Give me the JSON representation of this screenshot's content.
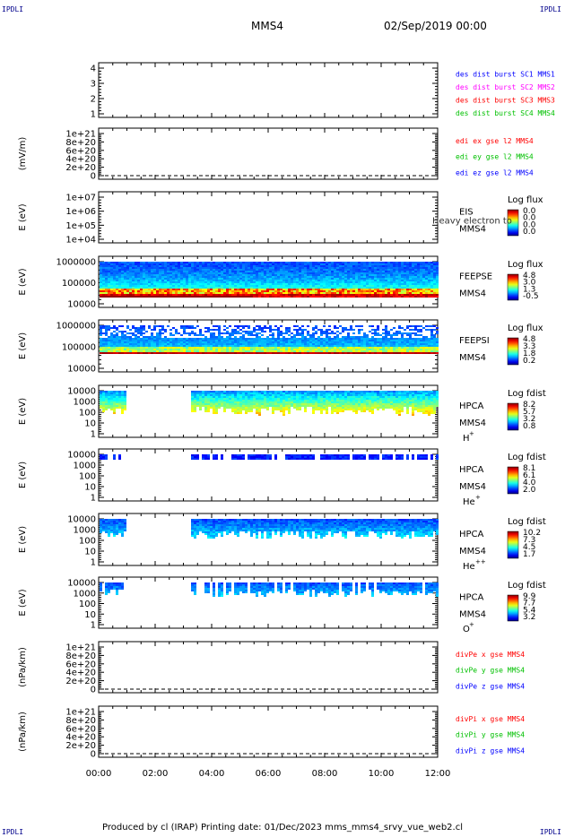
{
  "corners": {
    "tl": "IPDLI",
    "tr": "IPDLI",
    "bl": "IPDLI",
    "br": "IPDLI"
  },
  "header": {
    "spacecraft": "MMS4",
    "datetime": "02/Sep/2019 00:00"
  },
  "footer": {
    "text": "Produced by cl (IRAP)    Printing date: 01/Dec/2023    mms_mms4_srvy_vue_web2.cl"
  },
  "chart_data": [
    {
      "type": "line",
      "name": "des_dist_burst",
      "yticks": [
        "1",
        "2",
        "3",
        "4"
      ],
      "ylabel": "",
      "legend": [
        {
          "text": "des dist burst SC1 MMS1",
          "color": "#0000ff"
        },
        {
          "text": "des dist burst SC2 MMS2",
          "color": "#ff00ff"
        },
        {
          "text": "des dist burst SC3 MMS3",
          "color": "#ff0000"
        },
        {
          "text": "des dist burst SC4 MMS4",
          "color": "#00c000"
        }
      ]
    },
    {
      "type": "line",
      "name": "edi_e",
      "yticks": [
        "0",
        "2e+20",
        "4e+20",
        "6e+20",
        "8e+20",
        "1e+21"
      ],
      "ylabel": "(mV/m)",
      "legend": [
        {
          "text": "edi ex gse l2 MMS4",
          "color": "#ff0000"
        },
        {
          "text": "edi ey gse l2 MMS4",
          "color": "#00c000"
        },
        {
          "text": "edi ez gse l2 MMS4",
          "color": "#0000ff"
        }
      ]
    },
    {
      "type": "heatmap",
      "name": "eis",
      "yticks": [
        "1e+04",
        "1e+05",
        "1e+06",
        "1e+07"
      ],
      "ylabel": "E (eV)",
      "inst": "EIS",
      "sc": "MMS4",
      "overlay": "Heavy electron to",
      "cbar_title": "Log flux",
      "cbar_labels": [
        "0.0",
        "0.0",
        "0.0",
        "0.0"
      ]
    },
    {
      "type": "heatmap",
      "name": "feepse",
      "yticks": [
        "10000",
        "100000",
        "1000000"
      ],
      "ylabel": "E (eV)",
      "inst": "FEEPSE",
      "sc": "MMS4",
      "cbar_title": "Log flux",
      "cbar_labels": [
        "4.8",
        "3.0",
        "1.3",
        "-0.5"
      ]
    },
    {
      "type": "heatmap",
      "name": "feepsi",
      "yticks": [
        "10000",
        "100000",
        "1000000"
      ],
      "ylabel": "E (eV)",
      "inst": "FEEPSI",
      "sc": "MMS4",
      "cbar_title": "Log flux",
      "cbar_labels": [
        "4.8",
        "3.3",
        "1.8",
        "0.2"
      ]
    },
    {
      "type": "heatmap",
      "name": "hpca_h",
      "yticks": [
        "1",
        "10",
        "100",
        "1000",
        "10000"
      ],
      "ylabel": "E (eV)",
      "inst": "HPCA",
      "sc": "MMS4",
      "species": "H",
      "charge": "+",
      "cbar_title": "Log fdist",
      "cbar_labels": [
        "8.2",
        "5.7",
        "3.2",
        "0.8"
      ]
    },
    {
      "type": "heatmap",
      "name": "hpca_he",
      "yticks": [
        "1",
        "10",
        "100",
        "1000",
        "10000"
      ],
      "ylabel": "E (eV)",
      "inst": "HPCA",
      "sc": "MMS4",
      "species": "He",
      "charge": "+",
      "cbar_title": "Log fdist",
      "cbar_labels": [
        "8.1",
        "6.1",
        "4.0",
        "2.0"
      ]
    },
    {
      "type": "heatmap",
      "name": "hpca_hepp",
      "yticks": [
        "1",
        "10",
        "100",
        "1000",
        "10000"
      ],
      "ylabel": "E (eV)",
      "inst": "HPCA",
      "sc": "MMS4",
      "species": "He",
      "charge": "++",
      "cbar_title": "Log fdist",
      "cbar_labels": [
        "10.2",
        "7.3",
        "4.5",
        "1.7"
      ]
    },
    {
      "type": "heatmap",
      "name": "hpca_o",
      "yticks": [
        "1",
        "10",
        "100",
        "1000",
        "10000"
      ],
      "ylabel": "E (eV)",
      "inst": "HPCA",
      "sc": "MMS4",
      "species": "O",
      "charge": "+",
      "cbar_title": "Log fdist",
      "cbar_labels": [
        "9.9",
        "7.7",
        "5.4",
        "3.2"
      ]
    },
    {
      "type": "line",
      "name": "divpe",
      "yticks": [
        "0",
        "2e+20",
        "4e+20",
        "6e+20",
        "8e+20",
        "1e+21"
      ],
      "ylabel": "(nPa/km)",
      "legend": [
        {
          "text": "divPe x gse MMS4",
          "color": "#ff0000"
        },
        {
          "text": "divPe y gse MMS4",
          "color": "#00c000"
        },
        {
          "text": "divPe z gse MMS4",
          "color": "#0000ff"
        }
      ]
    },
    {
      "type": "line",
      "name": "divpi",
      "yticks": [
        "0",
        "2e+20",
        "4e+20",
        "6e+20",
        "8e+20",
        "1e+21"
      ],
      "ylabel": "(nPa/km)",
      "legend": [
        {
          "text": "divPi x gse MMS4",
          "color": "#ff0000"
        },
        {
          "text": "divPi y gse MMS4",
          "color": "#00c000"
        },
        {
          "text": "divPi z gse MMS4",
          "color": "#0000ff"
        }
      ]
    }
  ],
  "xaxis": {
    "ticks": [
      "00:00",
      "02:00",
      "04:00",
      "06:00",
      "08:00",
      "10:00",
      "12:00"
    ]
  }
}
